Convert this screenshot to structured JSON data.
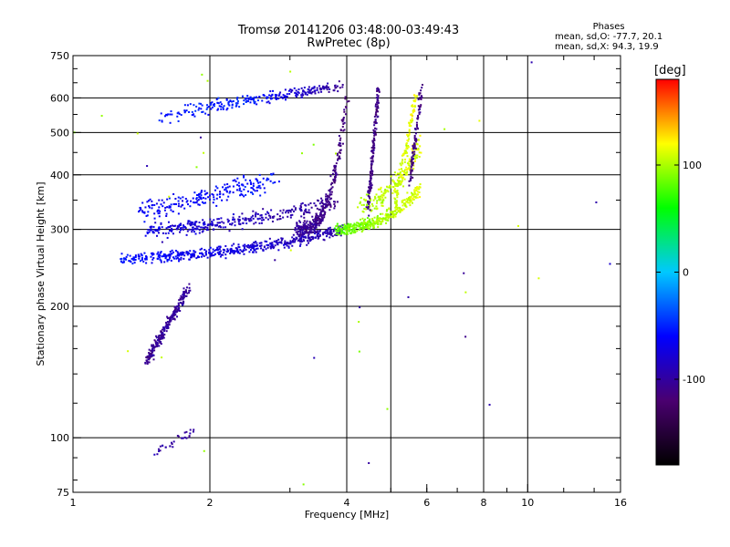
{
  "header": {
    "title_line1": "Tromsø 20141206 03:48:00-03:49:43",
    "title_line2": "RwPretec (8p)"
  },
  "phase_stats": {
    "heading": "Phases",
    "line_o": "mean, sd,O: -77.7, 20.1",
    "line_x": "mean, sd,X:  94.3, 19.9"
  },
  "colorbar": {
    "unit_label": "[deg]",
    "range": [
      -180,
      180
    ],
    "ticks": [
      {
        "value": 100,
        "label": "100"
      },
      {
        "value": 0,
        "label": "0"
      },
      {
        "value": -100,
        "label": "-100"
      }
    ],
    "colors": [
      "#000000",
      "#4a0070",
      "#0000ff",
      "#00c8ff",
      "#00ff00",
      "#ffff00",
      "#ff0000"
    ]
  },
  "chart_data": {
    "type": "scatter",
    "title": "Tromsø 20141206 03:48:00-03:49:43",
    "subtitle": "RwPretec (8p)",
    "xlabel": "Frequency [MHz]",
    "ylabel": "Stationary phase Virtual Height [km]",
    "xscale": "log",
    "yscale": "log",
    "xlim": [
      1,
      16
    ],
    "ylim": [
      75,
      750
    ],
    "x_ticks": [
      {
        "value": 1,
        "label": "1"
      },
      {
        "value": 2,
        "label": "2"
      },
      {
        "value": 4,
        "label": "4"
      },
      {
        "value": 6,
        "label": "6"
      },
      {
        "value": 8,
        "label": "8"
      },
      {
        "value": 10,
        "label": "10"
      },
      {
        "value": 16,
        "label": "16"
      }
    ],
    "y_ticks": [
      {
        "value": 75,
        "label": "75"
      },
      {
        "value": 100,
        "label": "100"
      },
      {
        "value": 200,
        "label": "200"
      },
      {
        "value": 300,
        "label": "300"
      },
      {
        "value": 400,
        "label": "400"
      },
      {
        "value": 500,
        "label": "500"
      },
      {
        "value": 600,
        "label": "600"
      },
      {
        "value": 750,
        "label": "750"
      }
    ],
    "grid_x": [
      2,
      4,
      5,
      8,
      10
    ],
    "grid_y": [
      100,
      200,
      300,
      400,
      500,
      600
    ],
    "minor_x": [
      3,
      5,
      6,
      7,
      8,
      9,
      12,
      14
    ],
    "minor_y": [
      80,
      90,
      120,
      140,
      160,
      180,
      250,
      350,
      450,
      550,
      650,
      700
    ],
    "color_scale": "phase in degrees",
    "clusters": [
      {
        "name": "o-trace-F",
        "f_start": 1.28,
        "f_end": 3.95,
        "h_start": 258,
        "h_end": 300,
        "curve": 1.9,
        "spread": 0.035,
        "phase_start": -55,
        "phase_end": -95,
        "n": 520
      },
      {
        "name": "o-trace-F2",
        "f_start": 1.45,
        "f_end": 3.8,
        "h_start": 300,
        "h_end": 345,
        "curve": 1.6,
        "spread": 0.045,
        "phase_start": -70,
        "phase_end": -105,
        "n": 320
      },
      {
        "name": "x-trace-F",
        "f_start": 3.8,
        "f_end": 5.8,
        "h_start": 300,
        "h_end": 370,
        "curve": 2.2,
        "spread": 0.04,
        "phase_start": 80,
        "phase_end": 115,
        "n": 380
      },
      {
        "name": "x-trace-upper",
        "f_start": 4.3,
        "f_end": 5.8,
        "h_start": 340,
        "h_end": 470,
        "curve": 2.0,
        "spread": 0.06,
        "phase_start": 100,
        "phase_end": 115,
        "n": 180
      },
      {
        "name": "o-cusp",
        "f_start": 3.1,
        "f_end": 4.0,
        "h_start": 300,
        "h_end": 600,
        "curve": 3.2,
        "spread": 0.05,
        "phase_start": -100,
        "phase_end": -115,
        "n": 320
      },
      {
        "name": "o-vertical-4.6",
        "f_start": 4.45,
        "f_end": 4.7,
        "h_start": 330,
        "h_end": 640,
        "curve": 1.0,
        "spread": 0.03,
        "phase_start": -110,
        "phase_end": -112,
        "n": 160
      },
      {
        "name": "o-vertical-5.7",
        "f_start": 5.5,
        "f_end": 5.85,
        "h_start": 380,
        "h_end": 640,
        "curve": 1.0,
        "spread": 0.03,
        "phase_start": -112,
        "phase_end": -112,
        "n": 90
      },
      {
        "name": "x-vertical-5.3",
        "f_start": 5.1,
        "f_end": 5.7,
        "h_start": 340,
        "h_end": 620,
        "curve": 1.0,
        "spread": 0.035,
        "phase_start": 105,
        "phase_end": 120,
        "n": 110
      },
      {
        "name": "top-trace",
        "f_start": 2.4,
        "f_end": 3.9,
        "h_start": 590,
        "h_end": 640,
        "curve": 1.0,
        "spread": 0.035,
        "phase_start": -50,
        "phase_end": -105,
        "n": 150
      },
      {
        "name": "upper-left-patch",
        "f_start": 1.55,
        "f_end": 2.5,
        "h_start": 540,
        "h_end": 600,
        "curve": 1.0,
        "spread": 0.045,
        "phase_start": -55,
        "phase_end": -50,
        "n": 110
      },
      {
        "name": "mid-left-patch",
        "f_start": 1.4,
        "f_end": 2.8,
        "h_start": 330,
        "h_end": 390,
        "curve": 1.0,
        "spread": 0.06,
        "phase_start": -65,
        "phase_end": -55,
        "n": 220
      },
      {
        "name": "E-region-blob",
        "f_start": 1.45,
        "f_end": 1.8,
        "h_start": 150,
        "h_end": 220,
        "curve": 1.0,
        "spread": 0.04,
        "phase_start": -105,
        "phase_end": -100,
        "n": 240
      },
      {
        "name": "low-blob",
        "f_start": 1.5,
        "f_end": 1.85,
        "h_start": 92,
        "h_end": 104,
        "curve": 1.0,
        "spread": 0.03,
        "phase_start": -95,
        "phase_end": -100,
        "n": 30
      }
    ]
  }
}
